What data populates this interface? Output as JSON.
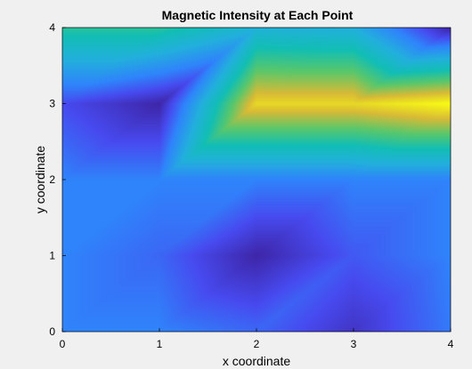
{
  "chart_data": {
    "type": "heatmap",
    "title": "Magnetic Intensity at Each Point",
    "xlabel": "x coordinate",
    "ylabel": "y coordinate",
    "xlim": [
      0,
      4
    ],
    "ylim": [
      0,
      4
    ],
    "x": [
      0,
      1,
      2,
      3,
      4
    ],
    "y": [
      0,
      1,
      2,
      3,
      4
    ],
    "x_ticks": [
      "0",
      "1",
      "2",
      "3",
      "4"
    ],
    "y_ticks": [
      "0",
      "1",
      "2",
      "3",
      "4"
    ],
    "z": [
      [
        0.24,
        0.24,
        0.18,
        0.05,
        0.22
      ],
      [
        0.24,
        0.18,
        0.0,
        0.15,
        0.24
      ],
      [
        0.24,
        0.24,
        0.24,
        0.24,
        0.24
      ],
      [
        0.12,
        0.0,
        0.92,
        0.92,
        1.0
      ],
      [
        0.6,
        0.6,
        0.42,
        0.4,
        0.0
      ]
    ],
    "colormap": "parula",
    "grid": false,
    "background": "#f0f0f0"
  }
}
